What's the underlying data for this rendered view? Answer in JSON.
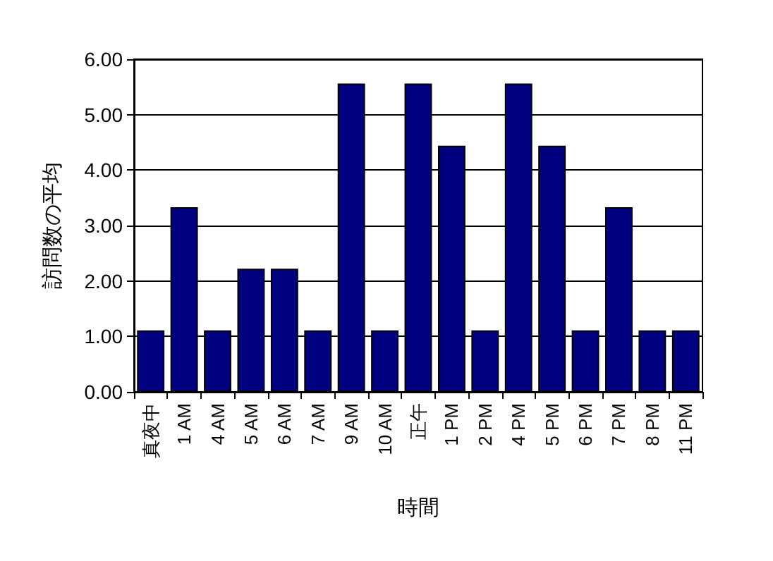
{
  "chart_data": {
    "type": "bar",
    "xlabel": "時間",
    "ylabel": "訪問数の平均",
    "categories": [
      "真夜中",
      "1 AM",
      "4 AM",
      "5 AM",
      "6 AM",
      "7 AM",
      "9 AM",
      "10 AM",
      "正午",
      "1 PM",
      "2 PM",
      "4 PM",
      "5 PM",
      "6 PM",
      "7 PM",
      "8 PM",
      "11 PM"
    ],
    "values": [
      1.11,
      3.33,
      1.11,
      2.22,
      2.22,
      1.11,
      5.56,
      1.11,
      5.56,
      4.44,
      1.11,
      5.56,
      4.44,
      1.11,
      3.33,
      1.11,
      1.11
    ],
    "color": "#000080",
    "ylim": [
      0,
      6
    ],
    "yticks": [
      {
        "value": 0,
        "label": "0.00"
      },
      {
        "value": 1,
        "label": "1.00"
      },
      {
        "value": 2,
        "label": "2.00"
      },
      {
        "value": 3,
        "label": "3.00"
      },
      {
        "value": 4,
        "label": "4.00"
      },
      {
        "value": 5,
        "label": "5.00"
      },
      {
        "value": 6,
        "label": "6.00"
      }
    ],
    "grid": "y"
  }
}
